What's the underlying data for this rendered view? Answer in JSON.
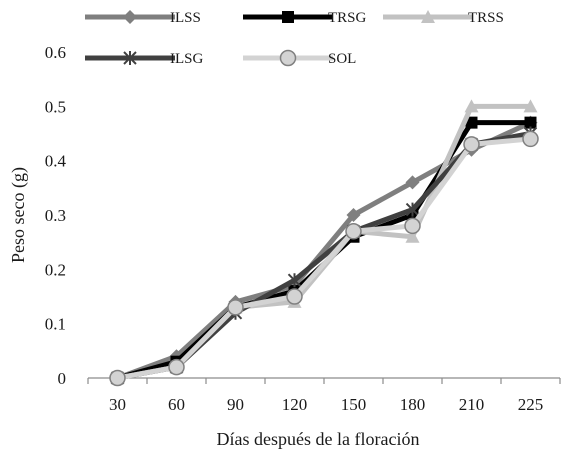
{
  "chart_data": {
    "type": "line",
    "xlabel": "Días después de la floración",
    "ylabel": "Peso seco (g)",
    "categories": [
      "30",
      "60",
      "90",
      "120",
      "150",
      "180",
      "210",
      "225"
    ],
    "ylim": [
      0,
      0.6
    ],
    "yticks": [
      "0",
      "0.1",
      "0.2",
      "0.3",
      "0.4",
      "0.5",
      "0.6"
    ],
    "grid": false,
    "legend_position": "top",
    "series": [
      {
        "name": "ILSS",
        "color": "#7f7f7f",
        "marker": "diamond",
        "values": [
          0,
          0.04,
          0.14,
          0.17,
          0.3,
          0.36,
          0.42,
          0.47
        ]
      },
      {
        "name": "TRSG",
        "color": "#000000",
        "marker": "square",
        "values": [
          0,
          0.03,
          0.13,
          0.16,
          0.26,
          0.3,
          0.47,
          0.47
        ]
      },
      {
        "name": "TRSS",
        "color": "#c2c2c2",
        "marker": "triangle",
        "values": [
          0,
          0.02,
          0.13,
          0.14,
          0.27,
          0.26,
          0.5,
          0.5
        ]
      },
      {
        "name": "ILSG",
        "color": "#404040",
        "marker": "star",
        "values": [
          0,
          0.02,
          0.12,
          0.18,
          0.27,
          0.31,
          0.43,
          0.45
        ]
      },
      {
        "name": "SOL",
        "color": "#d3d3d3",
        "marker": "circle",
        "values": [
          0,
          0.02,
          0.13,
          0.15,
          0.27,
          0.28,
          0.43,
          0.44
        ]
      }
    ]
  }
}
